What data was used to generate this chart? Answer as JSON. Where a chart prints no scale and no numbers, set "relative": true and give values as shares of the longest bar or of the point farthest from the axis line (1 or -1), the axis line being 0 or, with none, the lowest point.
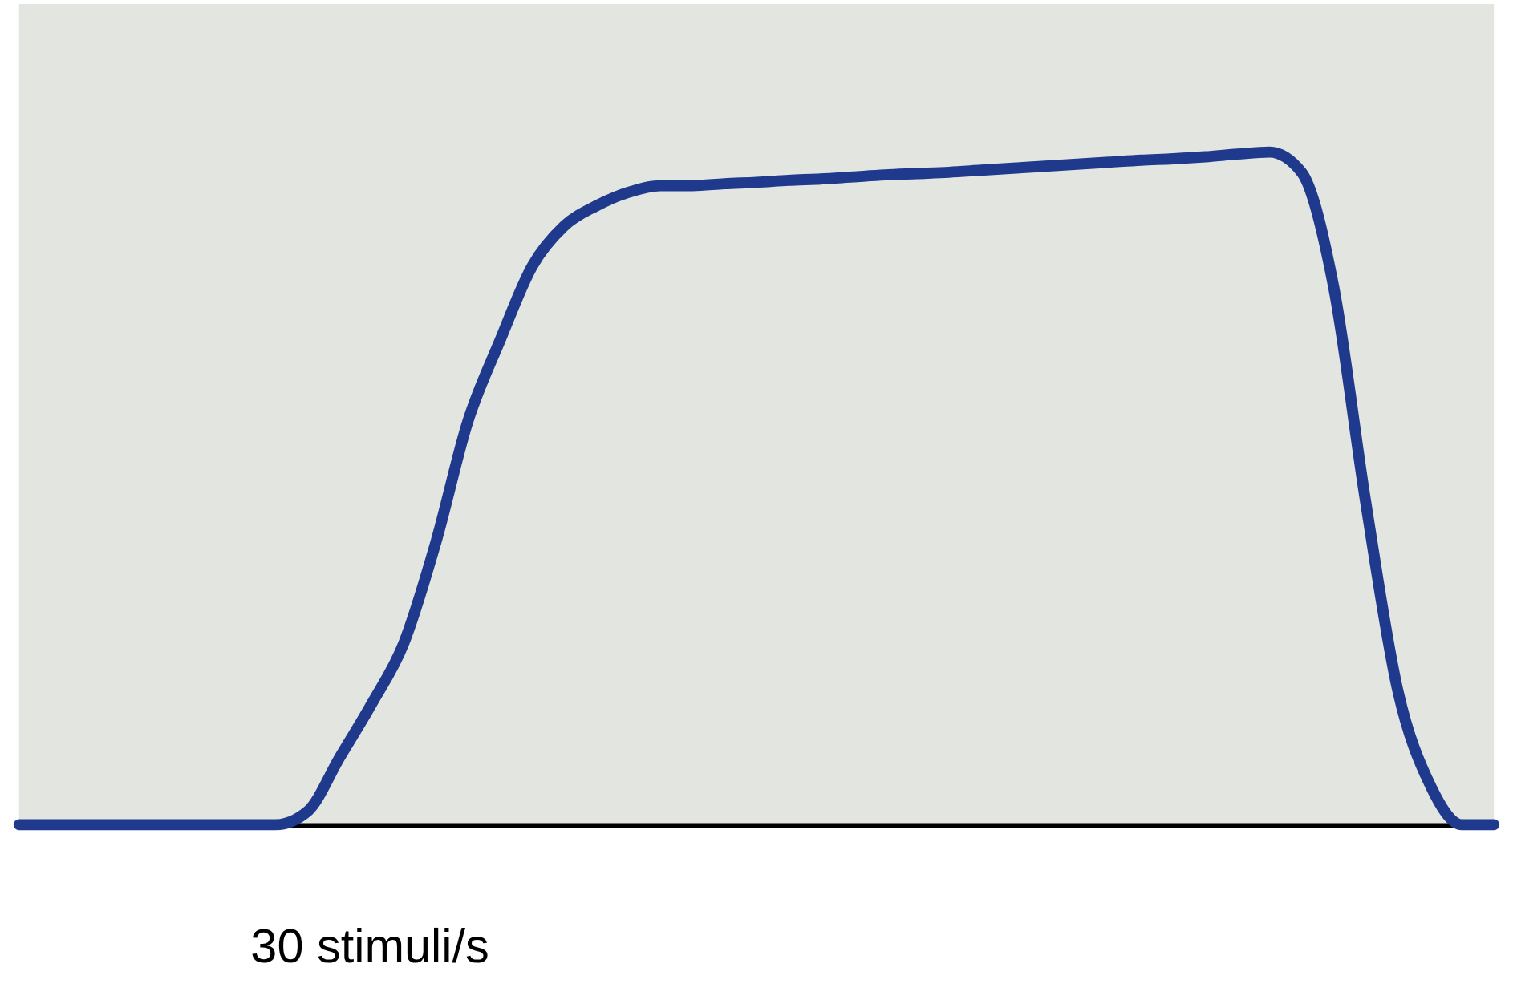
{
  "chart_data": {
    "type": "line",
    "relative": true,
    "xlabel": "30 stimuli/s",
    "tick_labels": false,
    "grid": false,
    "marker": "none",
    "line_style": "solid",
    "categories": [
      null,
      null,
      null,
      null,
      null,
      null,
      null,
      null,
      null,
      null,
      null,
      null,
      null,
      null,
      null,
      null,
      null,
      null,
      null,
      null,
      null,
      null,
      null,
      null,
      null,
      null,
      null,
      null,
      null,
      null,
      null,
      null,
      null,
      null,
      null,
      null,
      null,
      null,
      null,
      null,
      null,
      null,
      null,
      null,
      null,
      null,
      null
    ],
    "series": [
      {
        "color": "#1f3a8c",
        "values": [
          0,
          0,
          0,
          0,
          0,
          0,
          0,
          0,
          0,
          0.02,
          0.1,
          0.18,
          0.27,
          0.42,
          0.6,
          0.72,
          0.83,
          0.89,
          0.92,
          0.94,
          0.95,
          0.95,
          0.953,
          0.955,
          0.958,
          0.96,
          0.963,
          0.966,
          0.968,
          0.97,
          0.973,
          0.976,
          0.979,
          0.982,
          0.985,
          0.988,
          0.99,
          0.993,
          0.997,
          1.0,
          0.97,
          0.8,
          0.48,
          0.2,
          0.06,
          0,
          0
        ]
      }
    ]
  }
}
